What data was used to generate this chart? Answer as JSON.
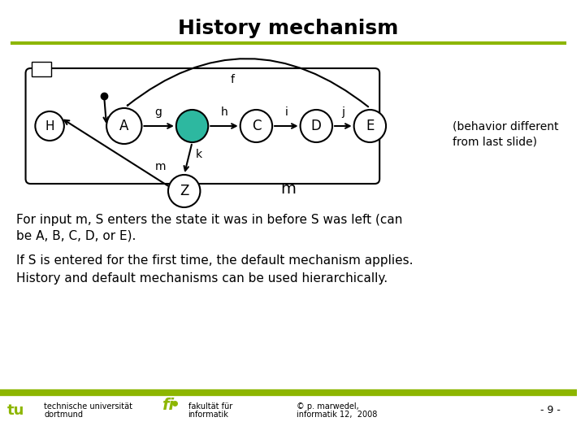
{
  "title": "History mechanism",
  "title_fontsize": 18,
  "title_fontweight": "bold",
  "green_line_color": "#8db600",
  "green_fill": "#2db8a0",
  "text_lines": [
    "For input m, S enters the state it was in before S was left (can",
    "be A, B, C, D, or E).",
    "If S is entered for the first time, the default mechanism applies.",
    "History and default mechanisms can be used hierarchically."
  ],
  "footer_left1": "technische universität",
  "footer_left2": "dortmund",
  "footer_mid1": "fakultät für",
  "footer_mid2": "informatik",
  "footer_right1": "© p. marwedel,",
  "footer_right2": "informatik 12,  2008",
  "footer_page": "- 9 -",
  "behavior_note": "(behavior different\nfrom last slide)"
}
